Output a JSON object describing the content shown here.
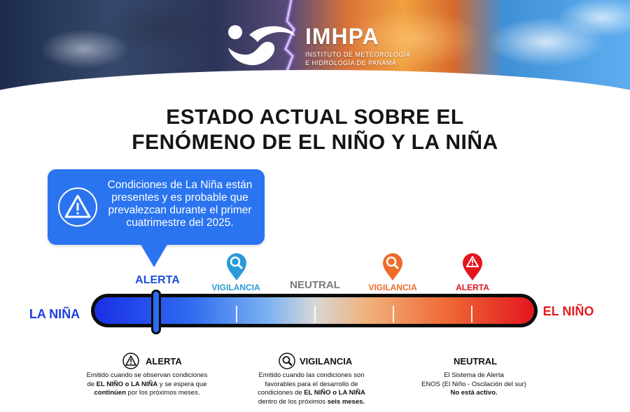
{
  "header": {
    "brand": "IMHPA",
    "subtitle_line1": "INSTITUTO DE METEOROLOGÍA",
    "subtitle_line2": "E HIDROLOGÍA DE PANAMÁ"
  },
  "title": {
    "line1": "ESTADO ACTUAL SOBRE EL",
    "line2": "FENÓMENO DE EL NIÑO Y LA NIÑA"
  },
  "callout": {
    "icon": "warning-triangle-icon",
    "text": "Condiciones de La Niña están presentes y es probable que prevalezcan durante el primer cuatrimestre del 2025.",
    "color": "#2b74f0"
  },
  "scale": {
    "left_end": "LA NIÑA",
    "right_end": "EL NIÑO",
    "states": [
      {
        "label": "ALERTA",
        "side": "la-nina",
        "color": "#1b4fd6",
        "icon": "none"
      },
      {
        "label": "VIGILANCIA",
        "side": "la-nina",
        "color": "#2a9ad8",
        "icon": "magnifier-pin-icon"
      },
      {
        "label": "NEUTRAL",
        "side": "center",
        "color": "#7a7a7a",
        "icon": "none"
      },
      {
        "label": "VIGILANCIA",
        "side": "el-nino",
        "color": "#ee6b2b",
        "icon": "magnifier-pin-icon"
      },
      {
        "label": "ALERTA",
        "side": "el-nino",
        "color": "#e3161f",
        "icon": "warning-pin-icon"
      }
    ],
    "current_state": "ALERTA (La Niña)"
  },
  "legend": {
    "alerta": {
      "title": "ALERTA",
      "icon": "warning-triangle-icon",
      "line1": "Emitido cuando se observan condiciones",
      "line2_pre": "de ",
      "line2_b1": "EL NIÑO o LA NIÑA",
      "line2_post": " y se espera que",
      "line3_b": "continúen",
      "line3_post": " por los próximos meses."
    },
    "vigilancia": {
      "title": "VIGILANCIA",
      "icon": "magnifier-icon",
      "line1": "Emitido cuando las condiciones son",
      "line2": "favorables para el desarrollo de",
      "line3_pre": "condiciones de ",
      "line3_b": "EL NIÑO o LA NIÑA",
      "line4_pre": "dentro de los próximos ",
      "line4_b": "seis meses."
    },
    "neutral": {
      "title": "NEUTRAL",
      "line1": "El Sistema de Alerta",
      "line2": "ENOS (El Niño - Oscilación del sur)",
      "line3_b": "No está activo."
    }
  }
}
